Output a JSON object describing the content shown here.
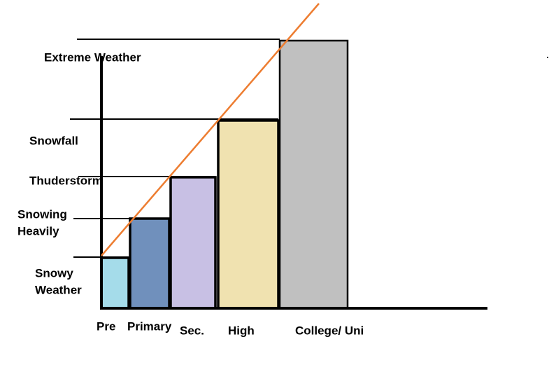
{
  "levels": [
    [
      "Snowy",
      "Weather"
    ],
    [
      "Snowing",
      "Heavily"
    ],
    [
      "Thuderstorm"
    ],
    [
      "Snowfall"
    ],
    [
      "Extreme Weather"
    ]
  ],
  "stages": [
    "Pre",
    "Primary",
    "Sec.",
    "High",
    "College/ Uni"
  ]
}
